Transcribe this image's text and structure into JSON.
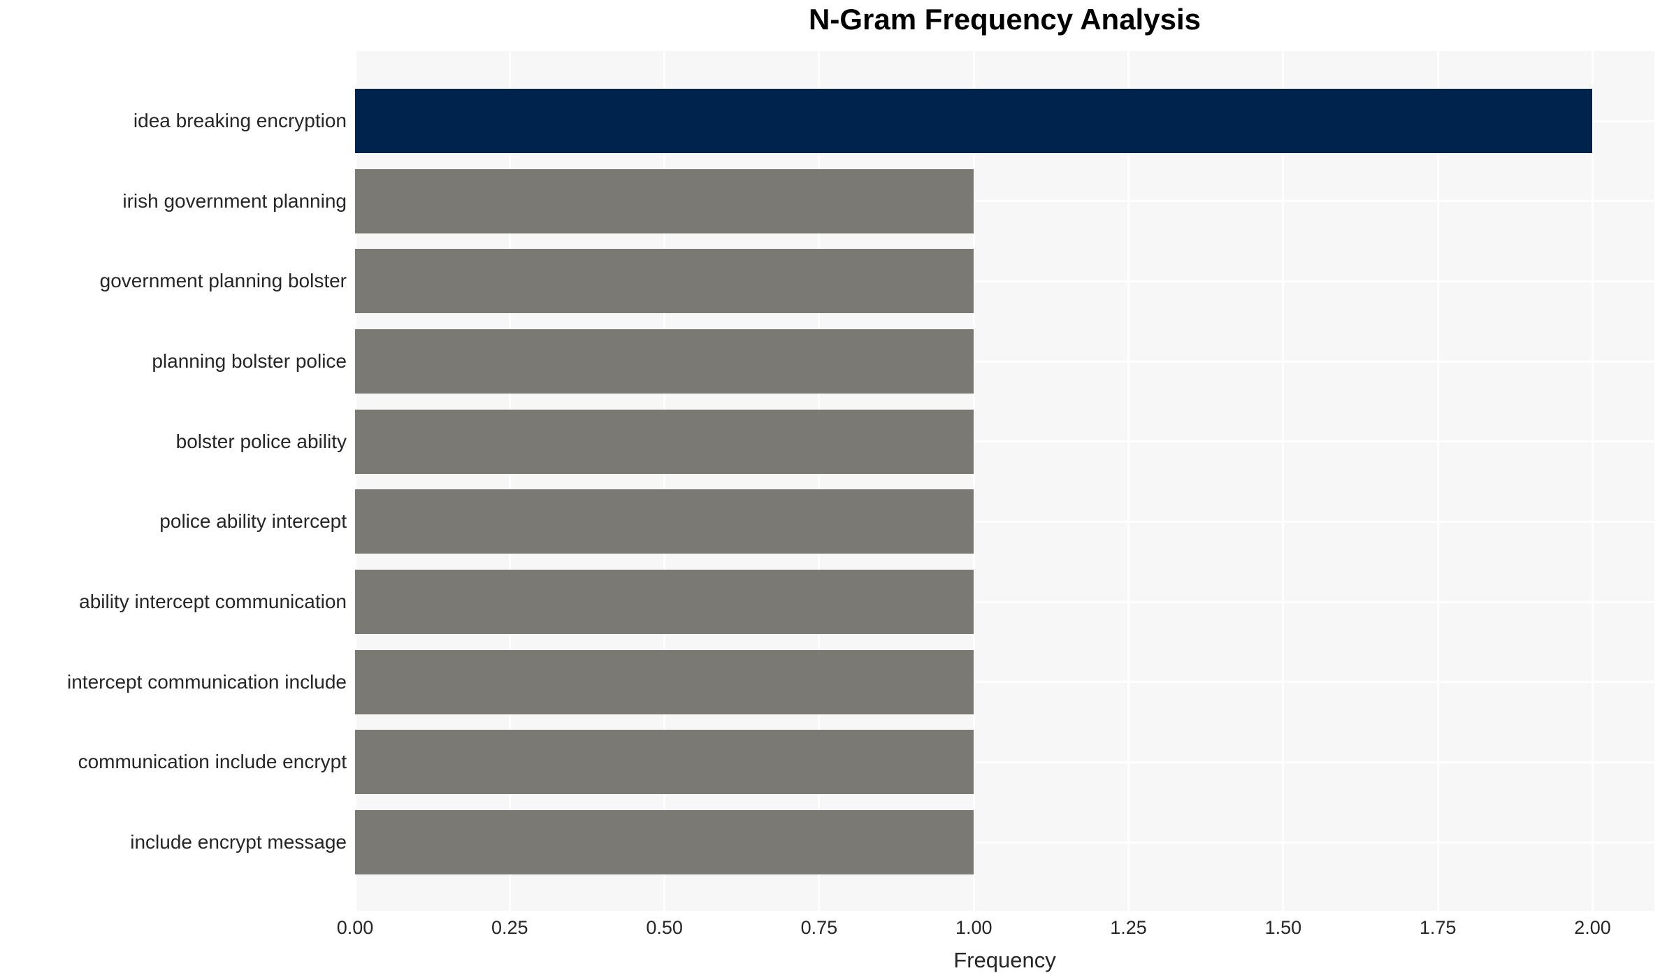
{
  "chart_data": {
    "type": "bar",
    "orientation": "horizontal",
    "title": "N-Gram Frequency Analysis",
    "xlabel": "Frequency",
    "ylabel": "",
    "categories": [
      "idea breaking encryption",
      "irish government planning",
      "government planning bolster",
      "planning bolster police",
      "bolster police ability",
      "police ability intercept",
      "ability intercept communication",
      "intercept communication include",
      "communication include encrypt",
      "include encrypt message"
    ],
    "values": [
      2,
      1,
      1,
      1,
      1,
      1,
      1,
      1,
      1,
      1
    ],
    "bar_colors": [
      "#00234e",
      "#7a7974",
      "#7a7974",
      "#7a7974",
      "#7a7974",
      "#7a7974",
      "#7a7974",
      "#7a7974",
      "#7a7974",
      "#7a7974"
    ],
    "xlim": [
      0,
      2.1
    ],
    "xticks": [
      0.0,
      0.25,
      0.5,
      0.75,
      1.0,
      1.25,
      1.5,
      1.75,
      2.0
    ],
    "xtick_labels": [
      "0.00",
      "0.25",
      "0.50",
      "0.75",
      "1.00",
      "1.25",
      "1.50",
      "1.75",
      "2.00"
    ],
    "grid": true,
    "legend": false,
    "colors": {
      "highlight_bar": "#00234e",
      "default_bar": "#7a7974",
      "plot_background": "#f7f7f7",
      "gridline": "#ffffff",
      "text": "#262626",
      "title": "#000000"
    }
  }
}
